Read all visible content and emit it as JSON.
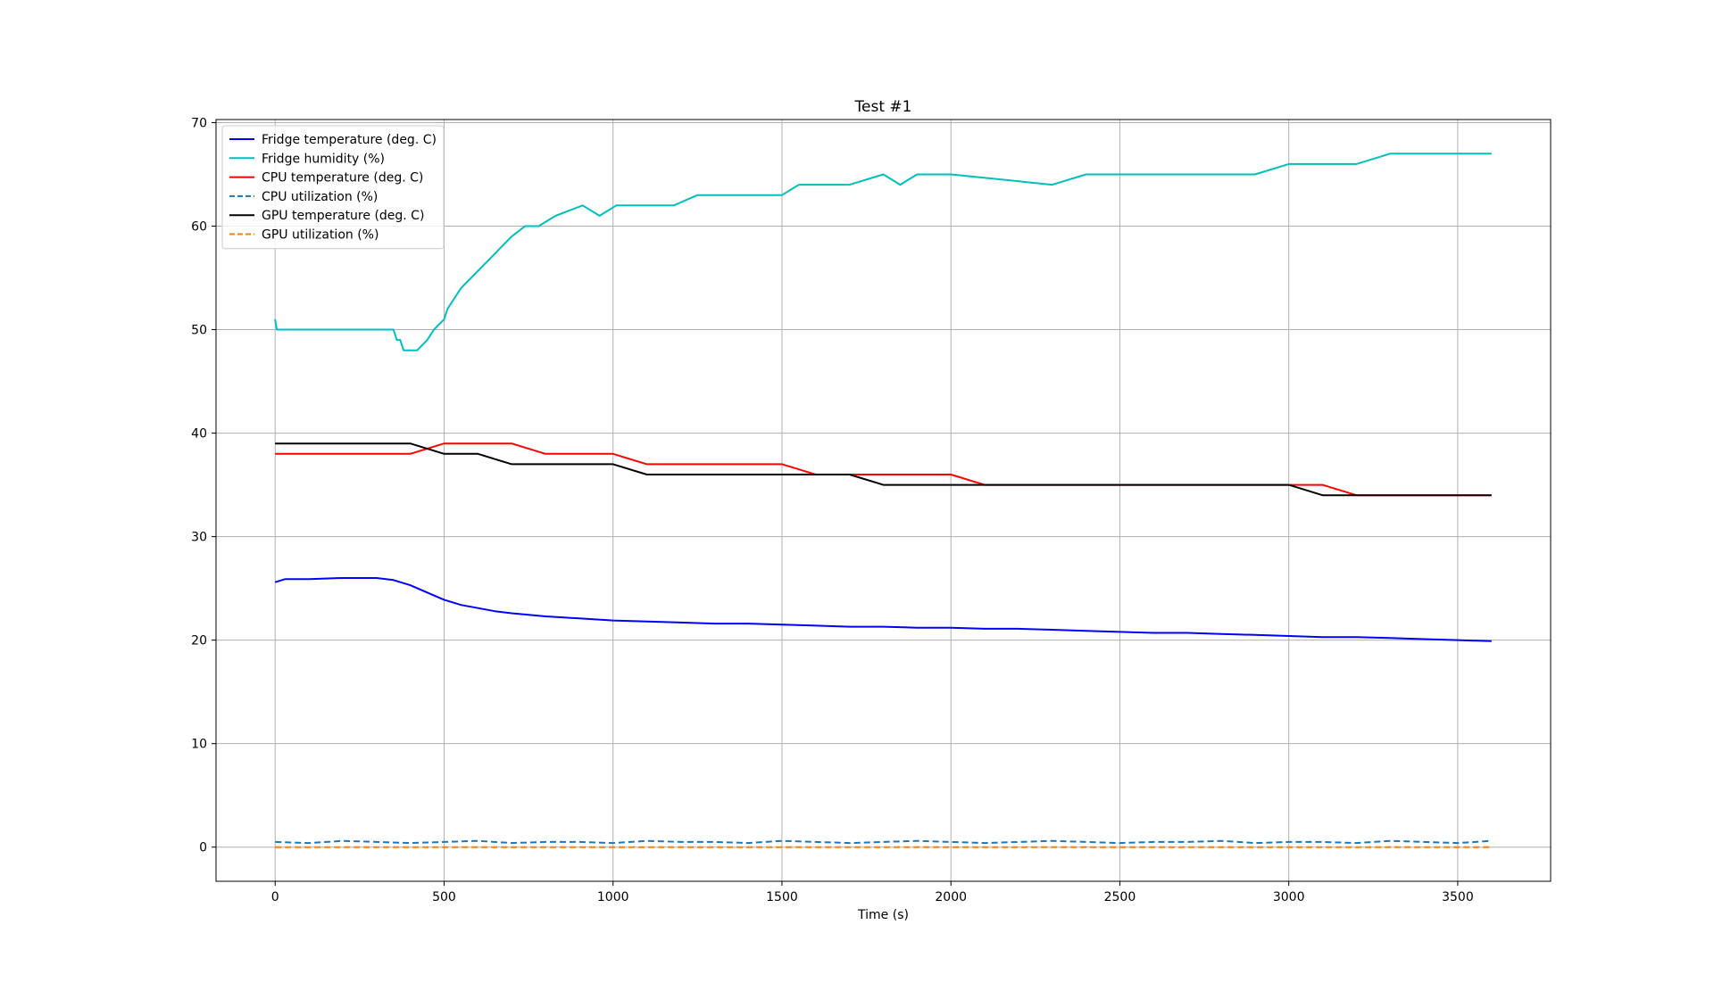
{
  "chart_data": {
    "type": "line",
    "title": "Test #1",
    "xlabel": "Time (s)",
    "ylabel": "",
    "xlim": [
      -175,
      3775
    ],
    "ylim": [
      -3.3,
      70.3
    ],
    "x_ticks": [
      0,
      500,
      1000,
      1500,
      2000,
      2500,
      3000,
      3500
    ],
    "y_ticks": [
      0,
      10,
      20,
      30,
      40,
      50,
      60,
      70
    ],
    "grid": true,
    "legend_position": "top-left",
    "series": [
      {
        "name": "Fridge temperature (deg. C)",
        "color": "#0000ff",
        "style": "solid",
        "x": [
          0,
          30,
          100,
          200,
          300,
          350,
          400,
          450,
          500,
          550,
          600,
          650,
          700,
          800,
          900,
          1000,
          1100,
          1200,
          1300,
          1400,
          1500,
          1600,
          1700,
          1800,
          1900,
          2000,
          2100,
          2200,
          2300,
          2400,
          2500,
          2600,
          2700,
          2800,
          2900,
          3000,
          3100,
          3200,
          3300,
          3400,
          3500,
          3600
        ],
        "y": [
          25.6,
          25.9,
          25.9,
          26.0,
          26.0,
          25.8,
          25.3,
          24.6,
          23.9,
          23.4,
          23.1,
          22.8,
          22.6,
          22.3,
          22.1,
          21.9,
          21.8,
          21.7,
          21.6,
          21.6,
          21.5,
          21.4,
          21.3,
          21.3,
          21.2,
          21.2,
          21.1,
          21.1,
          21.0,
          20.9,
          20.8,
          20.7,
          20.7,
          20.6,
          20.5,
          20.4,
          20.3,
          20.3,
          20.2,
          20.1,
          20.0,
          19.9
        ]
      },
      {
        "name": "Fridge humidity (%)",
        "color": "#00bfbf",
        "style": "solid",
        "x": [
          0,
          5,
          160,
          200,
          250,
          300,
          350,
          360,
          370,
          380,
          420,
          450,
          470,
          500,
          510,
          530,
          550,
          580,
          610,
          640,
          670,
          700,
          740,
          780,
          830,
          910,
          960,
          1010,
          1080,
          1180,
          1250,
          1350,
          1450,
          1500,
          1550,
          1600,
          1700,
          1800,
          1850,
          1900,
          1950,
          2000,
          2300,
          2400,
          2500,
          2700,
          2800,
          2900,
          3000,
          3100,
          3200,
          3300,
          3400,
          3500,
          3600
        ],
        "y": [
          51,
          50,
          50,
          50,
          50,
          50,
          50,
          49,
          49,
          48,
          48,
          49,
          50,
          51,
          52,
          53,
          54,
          55,
          56,
          57,
          58,
          59,
          60,
          60,
          61,
          62,
          61,
          62,
          62,
          62,
          63,
          63,
          63,
          63,
          64,
          64,
          64,
          65,
          64,
          65,
          65,
          65,
          64,
          65,
          65,
          65,
          65,
          65,
          66,
          66,
          66,
          67,
          67,
          67,
          67
        ]
      },
      {
        "name": "CPU temperature (deg. C)",
        "color": "#ff0000",
        "style": "solid",
        "x": [
          0,
          100,
          200,
          300,
          400,
          500,
          600,
          700,
          800,
          900,
          1000,
          1100,
          1200,
          1300,
          1400,
          1500,
          1600,
          1700,
          1800,
          1900,
          2000,
          2100,
          2200,
          2300,
          2400,
          2500,
          2600,
          2700,
          2800,
          2900,
          3000,
          3100,
          3200,
          3300,
          3400,
          3500,
          3600
        ],
        "y": [
          38,
          38,
          38,
          38,
          38,
          39,
          39,
          39,
          38,
          38,
          38,
          37,
          37,
          37,
          37,
          37,
          36,
          36,
          36,
          36,
          36,
          35,
          35,
          35,
          35,
          35,
          35,
          35,
          35,
          35,
          35,
          35,
          34,
          34,
          34,
          34,
          34
        ]
      },
      {
        "name": "CPU utilization (%)",
        "color": "#1f77b4",
        "style": "dashed",
        "x": [
          0,
          100,
          200,
          300,
          400,
          500,
          600,
          700,
          800,
          900,
          1000,
          1100,
          1200,
          1300,
          1400,
          1500,
          1600,
          1700,
          1800,
          1900,
          2000,
          2100,
          2200,
          2300,
          2400,
          2500,
          2600,
          2700,
          2800,
          2900,
          3000,
          3100,
          3200,
          3300,
          3400,
          3500,
          3600
        ],
        "y": [
          0.5,
          0.4,
          0.6,
          0.5,
          0.4,
          0.5,
          0.6,
          0.4,
          0.5,
          0.5,
          0.4,
          0.6,
          0.5,
          0.5,
          0.4,
          0.6,
          0.5,
          0.4,
          0.5,
          0.6,
          0.5,
          0.4,
          0.5,
          0.6,
          0.5,
          0.4,
          0.5,
          0.5,
          0.6,
          0.4,
          0.5,
          0.5,
          0.4,
          0.6,
          0.5,
          0.4,
          0.6
        ]
      },
      {
        "name": "GPU temperature (deg. C)",
        "color": "#000000",
        "style": "solid",
        "x": [
          0,
          100,
          200,
          300,
          400,
          500,
          600,
          700,
          800,
          900,
          1000,
          1100,
          1200,
          1300,
          1400,
          1500,
          1600,
          1700,
          1800,
          1900,
          2000,
          2100,
          2200,
          2300,
          2400,
          2500,
          2600,
          2700,
          2800,
          2900,
          3000,
          3100,
          3200,
          3300,
          3400,
          3500,
          3600
        ],
        "y": [
          39,
          39,
          39,
          39,
          39,
          38,
          38,
          37,
          37,
          37,
          37,
          36,
          36,
          36,
          36,
          36,
          36,
          36,
          35,
          35,
          35,
          35,
          35,
          35,
          35,
          35,
          35,
          35,
          35,
          35,
          35,
          34,
          34,
          34,
          34,
          34,
          34
        ]
      },
      {
        "name": "GPU utilization (%)",
        "color": "#ff7f0e",
        "style": "dashed",
        "x": [
          0,
          3600
        ],
        "y": [
          0,
          0
        ]
      }
    ]
  }
}
